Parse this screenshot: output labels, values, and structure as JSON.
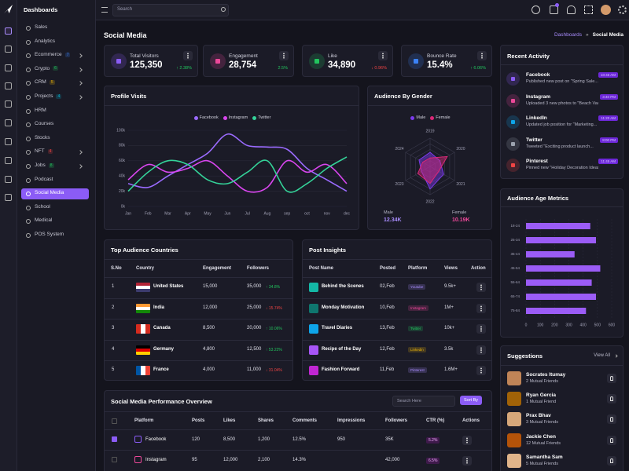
{
  "sidebar": {
    "title": "Dashboards",
    "items": [
      {
        "label": "Sales"
      },
      {
        "label": "Analytics"
      },
      {
        "label": "Ecommerce",
        "badge": "7",
        "badge_color": "#3b82f6",
        "submenu": true
      },
      {
        "label": "Crypto",
        "badge": "6",
        "badge_color": "#22c55e",
        "submenu": true
      },
      {
        "label": "CRM",
        "badge": "5",
        "badge_color": "#eab308",
        "submenu": true
      },
      {
        "label": "Projects",
        "badge": "4",
        "badge_color": "#06b6d4",
        "submenu": true
      },
      {
        "label": "HRM"
      },
      {
        "label": "Courses"
      },
      {
        "label": "Stocks"
      },
      {
        "label": "NFT",
        "badge": "4",
        "badge_color": "#ef4444",
        "submenu": true
      },
      {
        "label": "Jobs",
        "badge": "8",
        "badge_color": "#22c55e",
        "submenu": true
      },
      {
        "label": "Podcast"
      },
      {
        "label": "Social Media",
        "active": true
      },
      {
        "label": "School"
      },
      {
        "label": "Medical"
      },
      {
        "label": "POS System"
      }
    ]
  },
  "header": {
    "search_placeholder": "Search"
  },
  "page": {
    "title": "Social Media",
    "breadcrumb": [
      "Dashboards",
      "Social Media"
    ],
    "breadcrumb_separator": "»"
  },
  "stats": [
    {
      "label": "Total Visitors",
      "value": "125,350",
      "change": "↑ 2.38%",
      "trend": "up",
      "icon_color": "#8b5cf6"
    },
    {
      "label": "Engagement",
      "value": "28,754",
      "change": "2.5%",
      "trend": "up",
      "icon_color": "#ec4899"
    },
    {
      "label": "Like",
      "value": "34,890",
      "change": "↓ 0.96%",
      "trend": "down",
      "icon_color": "#22c55e"
    },
    {
      "label": "Bounce Rate",
      "value": "15.4%",
      "change": "↑ 6.06%",
      "trend": "up",
      "icon_color": "#3b82f6"
    }
  ],
  "recent_activity": {
    "title": "Recent Activity",
    "items": [
      {
        "platform": "Facebook",
        "text": "Published new post on \"Spring Sale...",
        "time": "10:45 AM",
        "icon_color": "#8b5cf6"
      },
      {
        "platform": "Instagram",
        "text": "Uploaded 3 new photos to \"Beach Vacatio...",
        "time": "3:40 PM",
        "icon_color": "#ec4899"
      },
      {
        "platform": "LinkedIn",
        "text": "Updated job position for \"Marketing...",
        "time": "11:20 AM",
        "icon_color": "#0ea5e9"
      },
      {
        "platform": "Twitter",
        "text": "Tweeted \"Exciting product launch...",
        "time": "8:00 PM",
        "icon_color": "#9ca3af"
      },
      {
        "platform": "Pinterest",
        "text": "Pinned new \"Holiday Decoration Ideas\"...",
        "time": "11:45 AM",
        "icon_color": "#ef4444"
      }
    ]
  },
  "chart_data": [
    {
      "type": "line",
      "title": "Profile Visits",
      "categories": [
        "Jan",
        "Feb",
        "Mar",
        "Apr",
        "May",
        "Jun",
        "Jul",
        "Aug",
        "sep",
        "oct",
        "nov",
        "dec"
      ],
      "series": [
        {
          "name": "Facebook",
          "color": "#9b6bff",
          "values": [
            30,
            25,
            40,
            55,
            70,
            95,
            80,
            78,
            75,
            50,
            35,
            20
          ]
        },
        {
          "name": "Instagram",
          "color": "#d946ef",
          "values": [
            35,
            55,
            45,
            50,
            60,
            40,
            20,
            25,
            60,
            45,
            55,
            30
          ]
        },
        {
          "name": "Twitter",
          "color": "#34d399",
          "values": [
            20,
            45,
            60,
            55,
            35,
            30,
            45,
            60,
            20,
            30,
            50,
            65
          ]
        }
      ],
      "ylim": [
        0,
        100
      ],
      "yticks": [
        {
          "value": 0,
          "label": "0k"
        },
        {
          "value": 20,
          "label": "20k"
        },
        {
          "value": 40,
          "label": "40k"
        },
        {
          "value": 60,
          "label": "60k"
        },
        {
          "value": 80,
          "label": "80k"
        },
        {
          "value": 100,
          "label": "100k"
        }
      ],
      "grid": true
    },
    {
      "type": "radar",
      "title": "Audience By Gender",
      "categories": [
        "2019",
        "2020",
        "2021",
        "2022",
        "2023",
        "2024"
      ],
      "series": [
        {
          "name": "Male",
          "color": "#7c3aed",
          "values": [
            50,
            40,
            55,
            80,
            35,
            45
          ]
        },
        {
          "name": "Female",
          "color": "#db2777",
          "values": [
            30,
            70,
            35,
            60,
            50,
            30
          ]
        }
      ],
      "rlim": [
        0,
        100
      ],
      "rticks": [
        20,
        40,
        60,
        80,
        100
      ],
      "totals": [
        {
          "label": "Male",
          "value": "12.34K",
          "color": "#a78bfa"
        },
        {
          "label": "Female",
          "value": "10.19K",
          "color": "#ec4899"
        }
      ]
    },
    {
      "type": "bar",
      "orientation": "horizontal",
      "title": "Audience Age Metrics",
      "categories": [
        "18-24",
        "25-34",
        "35-44",
        "45-54",
        "55-64",
        "65-74",
        "75-84"
      ],
      "values": [
        450,
        490,
        340,
        520,
        460,
        490,
        420
      ],
      "color": "#9b5cf6",
      "xlim": [
        0,
        600
      ],
      "xticks": [
        0,
        100,
        200,
        300,
        400,
        500,
        600
      ],
      "grid": true
    }
  ],
  "countries": {
    "title": "Top Audience Countries",
    "columns": [
      "S.No",
      "Country",
      "Engagement",
      "Followers"
    ],
    "rows": [
      {
        "no": "1",
        "country": "United States",
        "engagement": "15,000",
        "followers": "35,000",
        "change": "↑ 34.8%",
        "trend": "up",
        "flag_colors": [
          "#b22234",
          "#ffffff",
          "#3c3b6e"
        ],
        "flag_layout": "horizontal"
      },
      {
        "no": "2",
        "country": "India",
        "engagement": "12,000",
        "followers": "25,000",
        "change": "↓ 15.74%",
        "trend": "down",
        "flag_colors": [
          "#ff9933",
          "#ffffff",
          "#138808"
        ],
        "flag_layout": "horizontal"
      },
      {
        "no": "3",
        "country": "Canada",
        "engagement": "8,500",
        "followers": "20,000",
        "change": "↑ 10.06%",
        "trend": "up",
        "flag_colors": [
          "#d52b1e",
          "#ffffff",
          "#d52b1e"
        ],
        "flag_layout": "vertical"
      },
      {
        "no": "4",
        "country": "Germany",
        "engagement": "4,800",
        "followers": "12,500",
        "change": "↑ 53.22%",
        "trend": "up",
        "flag_colors": [
          "#000000",
          "#dd0000",
          "#ffce00"
        ],
        "flag_layout": "horizontal"
      },
      {
        "no": "5",
        "country": "France",
        "engagement": "4,000",
        "followers": "11,000",
        "change": "↓ 31.04%",
        "trend": "down",
        "flag_colors": [
          "#0055a4",
          "#ffffff",
          "#ef4135"
        ],
        "flag_layout": "vertical"
      }
    ]
  },
  "post_insights": {
    "title": "Post Insights",
    "columns": [
      "Post Name",
      "Posted",
      "Platform",
      "Views",
      "Action"
    ],
    "rows": [
      {
        "name": "Behind the Scenes",
        "posted": "02,Feb",
        "platform": "Youtube",
        "views": "9.5k+",
        "thumb_color": "#14b8a6",
        "platform_color": "#a78bfa"
      },
      {
        "name": "Monday Motivation",
        "posted": "10,Feb",
        "platform": "Instagram",
        "views": "1M+",
        "thumb_color": "#0f766e",
        "platform_color": "#ec4899"
      },
      {
        "name": "Travel Diaries",
        "posted": "13,Feb",
        "platform": "Twitter",
        "views": "10k+",
        "thumb_color": "#0ea5e9",
        "platform_color": "#22c55e"
      },
      {
        "name": "Recipe of the Day",
        "posted": "12,Feb",
        "platform": "Linkedin",
        "views": "3.5k",
        "thumb_color": "#a855f7",
        "platform_color": "#eab308"
      },
      {
        "name": "Fashion Forward",
        "posted": "11,Feb",
        "platform": "Pinterest",
        "views": "1.6M+",
        "thumb_color": "#c026d3",
        "platform_color": "#a78bfa"
      }
    ]
  },
  "performance": {
    "title": "Social Media Performance Overview",
    "search_placeholder": "Search Here",
    "sort_label": "Sort By",
    "columns": [
      "Platform",
      "Posts",
      "Likes",
      "Shares",
      "Comments",
      "Impressions",
      "Followers",
      "CTR (%)",
      "Actions"
    ],
    "rows": [
      {
        "checked": true,
        "icon_color": "#8b5cf6",
        "cells": [
          "Facebook",
          "120",
          "8,500",
          "1,200",
          "12.5%",
          "950",
          "35K",
          "5.2%"
        ]
      },
      {
        "checked": false,
        "icon_color": "#ec4899",
        "cells": [
          "Instagram",
          "95",
          "12,000",
          "2,100",
          "14.3%",
          null,
          "42,000",
          "6.5%"
        ]
      }
    ]
  },
  "suggestions": {
    "title": "Suggestions",
    "view_all": "View All",
    "people": [
      {
        "name": "Socrates Itumay",
        "mutual": "2 Mutual Friends",
        "avatar_color": "#c08457"
      },
      {
        "name": "Ryan Gercia",
        "mutual": "1 Mutual Friend",
        "avatar_color": "#a16207"
      },
      {
        "name": "Prax Bhav",
        "mutual": "3 Mutual Friends",
        "avatar_color": "#d6a77a"
      },
      {
        "name": "Jackie Chen",
        "mutual": "12 Mutual Friends",
        "avatar_color": "#b45309"
      },
      {
        "name": "Samantha Sam",
        "mutual": "5 Mutual Friends",
        "avatar_color": "#e0b48a"
      }
    ]
  }
}
